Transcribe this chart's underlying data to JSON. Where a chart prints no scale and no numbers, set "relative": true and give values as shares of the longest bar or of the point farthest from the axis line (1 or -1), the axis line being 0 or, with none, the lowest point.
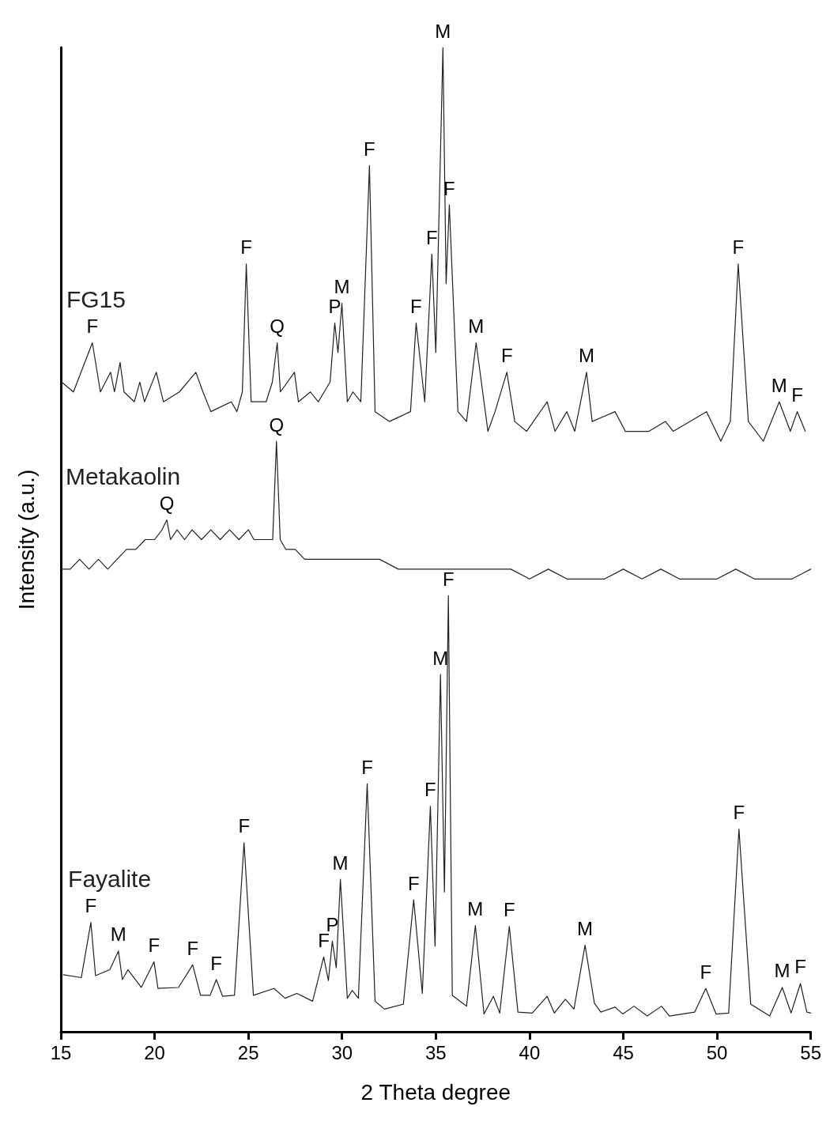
{
  "chart_data": {
    "type": "line",
    "relative": true,
    "xlabel": "2 Theta degree",
    "ylabel": "Intensity (a.u.)",
    "xlim": [
      15,
      55
    ],
    "xticks": [
      15,
      20,
      25,
      30,
      35,
      40,
      45,
      50,
      55
    ],
    "grid": false,
    "legend": false,
    "marker": "none",
    "line_style": "solid",
    "series": [
      {
        "name": "FG15",
        "color": "#222222",
        "x": [
          15.04,
          15.67,
          16.68,
          17.11,
          17.65,
          17.86,
          18.16,
          18.37,
          18.92,
          19.21,
          19.46,
          20.09,
          20.47,
          21.32,
          22.2,
          22.58,
          23.0,
          24.09,
          24.39,
          24.68,
          24.89,
          25.15,
          25.95,
          26.28,
          26.54,
          26.71,
          27.46,
          27.67,
          28.31,
          28.73,
          29.36,
          29.61,
          29.78,
          29.99,
          30.28,
          30.58,
          31.0,
          31.46,
          31.76,
          32.52,
          33.65,
          33.95,
          34.41,
          34.79,
          35.0,
          35.38,
          35.55,
          35.72,
          36.18,
          36.64,
          37.15,
          37.78,
          38.16,
          38.79,
          39.21,
          39.84,
          40.94,
          41.36,
          41.99,
          42.41,
          43.04,
          43.34,
          44.56,
          45.11,
          46.37,
          47.25,
          47.67,
          49.44,
          50.2,
          50.71,
          51.13,
          51.67,
          52.47,
          53.32,
          53.91,
          54.28,
          54.71
        ],
        "values": [
          0.66,
          0.65,
          0.7,
          0.65,
          0.67,
          0.65,
          0.68,
          0.65,
          0.64,
          0.66,
          0.64,
          0.67,
          0.64,
          0.65,
          0.67,
          0.65,
          0.63,
          0.64,
          0.63,
          0.65,
          0.78,
          0.64,
          0.64,
          0.66,
          0.7,
          0.65,
          0.67,
          0.64,
          0.65,
          0.64,
          0.66,
          0.72,
          0.69,
          0.74,
          0.64,
          0.65,
          0.64,
          0.88,
          0.63,
          0.62,
          0.63,
          0.72,
          0.64,
          0.79,
          0.69,
          1.0,
          0.76,
          0.84,
          0.63,
          0.62,
          0.7,
          0.61,
          0.63,
          0.67,
          0.62,
          0.61,
          0.64,
          0.61,
          0.63,
          0.61,
          0.67,
          0.62,
          0.63,
          0.61,
          0.61,
          0.62,
          0.61,
          0.63,
          0.6,
          0.62,
          0.78,
          0.62,
          0.6,
          0.64,
          0.61,
          0.63,
          0.61
        ]
      },
      {
        "name": "Metakaolin",
        "color": "#222222",
        "x": [
          15.0,
          15.5,
          16.0,
          16.5,
          17.0,
          17.5,
          18.0,
          18.5,
          19.0,
          19.5,
          20.0,
          20.4,
          20.65,
          20.85,
          21.2,
          21.6,
          22.0,
          22.5,
          23.0,
          23.5,
          24.0,
          24.5,
          25.0,
          25.3,
          25.7,
          26.0,
          26.3,
          26.5,
          26.7,
          27.0,
          27.5,
          28.0,
          29.0,
          30.0,
          31.0,
          32.0,
          33.0,
          34.0,
          35.0,
          36.0,
          37.0,
          38.0,
          39.0,
          40.0,
          41.0,
          42.0,
          43.0,
          44.0,
          45.0,
          46.0,
          47.0,
          48.0,
          49.0,
          50.0,
          51.0,
          52.0,
          53.0,
          54.0,
          55.0
        ],
        "values": [
          0.47,
          0.47,
          0.48,
          0.47,
          0.48,
          0.47,
          0.48,
          0.49,
          0.49,
          0.5,
          0.5,
          0.51,
          0.52,
          0.5,
          0.51,
          0.5,
          0.51,
          0.5,
          0.51,
          0.5,
          0.51,
          0.5,
          0.51,
          0.5,
          0.5,
          0.5,
          0.5,
          0.6,
          0.5,
          0.49,
          0.49,
          0.48,
          0.48,
          0.48,
          0.48,
          0.48,
          0.47,
          0.47,
          0.47,
          0.47,
          0.47,
          0.47,
          0.47,
          0.46,
          0.47,
          0.46,
          0.46,
          0.46,
          0.47,
          0.46,
          0.47,
          0.46,
          0.46,
          0.46,
          0.47,
          0.46,
          0.46,
          0.46,
          0.47
        ]
      },
      {
        "name": "Fayalite",
        "color": "#222222",
        "x": [
          15.13,
          16.09,
          16.6,
          16.85,
          17.61,
          18.07,
          18.28,
          18.58,
          19.29,
          19.97,
          20.18,
          21.27,
          21.61,
          22.03,
          22.45,
          22.96,
          23.29,
          23.63,
          24.26,
          24.77,
          25.27,
          26.37,
          26.96,
          27.59,
          28.43,
          29.02,
          29.27,
          29.48,
          29.69,
          29.91,
          30.28,
          30.54,
          30.87,
          31.34,
          31.76,
          32.26,
          33.27,
          33.82,
          34.28,
          34.71,
          34.96,
          35.25,
          35.46,
          35.67,
          35.88,
          36.64,
          37.11,
          37.57,
          38.07,
          38.41,
          38.92,
          39.38,
          40.14,
          40.94,
          41.32,
          41.91,
          42.37,
          42.96,
          43.46,
          43.8,
          44.56,
          44.98,
          45.57,
          46.28,
          47.04,
          47.46,
          48.81,
          49.4,
          49.95,
          50.62,
          51.17,
          51.8,
          52.81,
          53.48,
          53.95,
          54.45,
          54.79,
          55.0
        ],
        "values": [
          0.058,
          0.055,
          0.111,
          0.057,
          0.063,
          0.082,
          0.053,
          0.063,
          0.045,
          0.071,
          0.044,
          0.045,
          0.055,
          0.068,
          0.037,
          0.037,
          0.053,
          0.036,
          0.037,
          0.192,
          0.037,
          0.044,
          0.034,
          0.039,
          0.031,
          0.076,
          0.052,
          0.092,
          0.065,
          0.155,
          0.034,
          0.042,
          0.034,
          0.252,
          0.031,
          0.023,
          0.028,
          0.134,
          0.039,
          0.229,
          0.087,
          0.363,
          0.142,
          0.443,
          0.037,
          0.026,
          0.108,
          0.018,
          0.036,
          0.019,
          0.107,
          0.02,
          0.019,
          0.036,
          0.019,
          0.033,
          0.023,
          0.088,
          0.029,
          0.02,
          0.025,
          0.018,
          0.026,
          0.016,
          0.026,
          0.016,
          0.02,
          0.044,
          0.018,
          0.019,
          0.206,
          0.028,
          0.016,
          0.045,
          0.019,
          0.049,
          0.02,
          0.019
        ]
      }
    ],
    "annotations": [
      {
        "text": "F",
        "x": 16.68,
        "y": 0.7
      },
      {
        "text": "F",
        "x": 24.89,
        "y": 0.78
      },
      {
        "text": "Q",
        "x": 26.54,
        "y": 0.7
      },
      {
        "text": "P",
        "x": 29.61,
        "y": 0.72
      },
      {
        "text": "M",
        "x": 29.99,
        "y": 0.74
      },
      {
        "text": "F",
        "x": 31.46,
        "y": 0.88
      },
      {
        "text": "F",
        "x": 33.95,
        "y": 0.72
      },
      {
        "text": "F",
        "x": 34.79,
        "y": 0.79
      },
      {
        "text": "M",
        "x": 35.38,
        "y": 1.0
      },
      {
        "text": "F",
        "x": 35.72,
        "y": 0.84
      },
      {
        "text": "M",
        "x": 37.15,
        "y": 0.7
      },
      {
        "text": "F",
        "x": 38.79,
        "y": 0.67
      },
      {
        "text": "M",
        "x": 43.04,
        "y": 0.67
      },
      {
        "text": "F",
        "x": 51.13,
        "y": 0.78
      },
      {
        "text": "M",
        "x": 53.32,
        "y": 0.64
      },
      {
        "text": "F",
        "x": 54.28,
        "y": 0.63
      },
      {
        "text": "Q",
        "x": 20.65,
        "y": 0.52
      },
      {
        "text": "Q",
        "x": 26.5,
        "y": 0.6
      },
      {
        "text": "F",
        "x": 16.6,
        "y": 0.111
      },
      {
        "text": "M",
        "x": 18.07,
        "y": 0.082
      },
      {
        "text": "F",
        "x": 19.97,
        "y": 0.071
      },
      {
        "text": "F",
        "x": 22.03,
        "y": 0.068
      },
      {
        "text": "F",
        "x": 23.29,
        "y": 0.053
      },
      {
        "text": "F",
        "x": 24.77,
        "y": 0.192
      },
      {
        "text": "F",
        "x": 29.02,
        "y": 0.076
      },
      {
        "text": "P",
        "x": 29.48,
        "y": 0.092
      },
      {
        "text": "M",
        "x": 29.91,
        "y": 0.155
      },
      {
        "text": "F",
        "x": 31.34,
        "y": 0.252
      },
      {
        "text": "F",
        "x": 33.82,
        "y": 0.134
      },
      {
        "text": "F",
        "x": 34.71,
        "y": 0.229
      },
      {
        "text": "M",
        "x": 35.25,
        "y": 0.363
      },
      {
        "text": "F",
        "x": 35.67,
        "y": 0.443
      },
      {
        "text": "M",
        "x": 37.11,
        "y": 0.108
      },
      {
        "text": "F",
        "x": 38.92,
        "y": 0.107
      },
      {
        "text": "M",
        "x": 42.96,
        "y": 0.088
      },
      {
        "text": "F",
        "x": 49.4,
        "y": 0.044
      },
      {
        "text": "F",
        "x": 51.17,
        "y": 0.206
      },
      {
        "text": "M",
        "x": 53.48,
        "y": 0.045
      },
      {
        "text": "F",
        "x": 54.45,
        "y": 0.049
      }
    ]
  }
}
